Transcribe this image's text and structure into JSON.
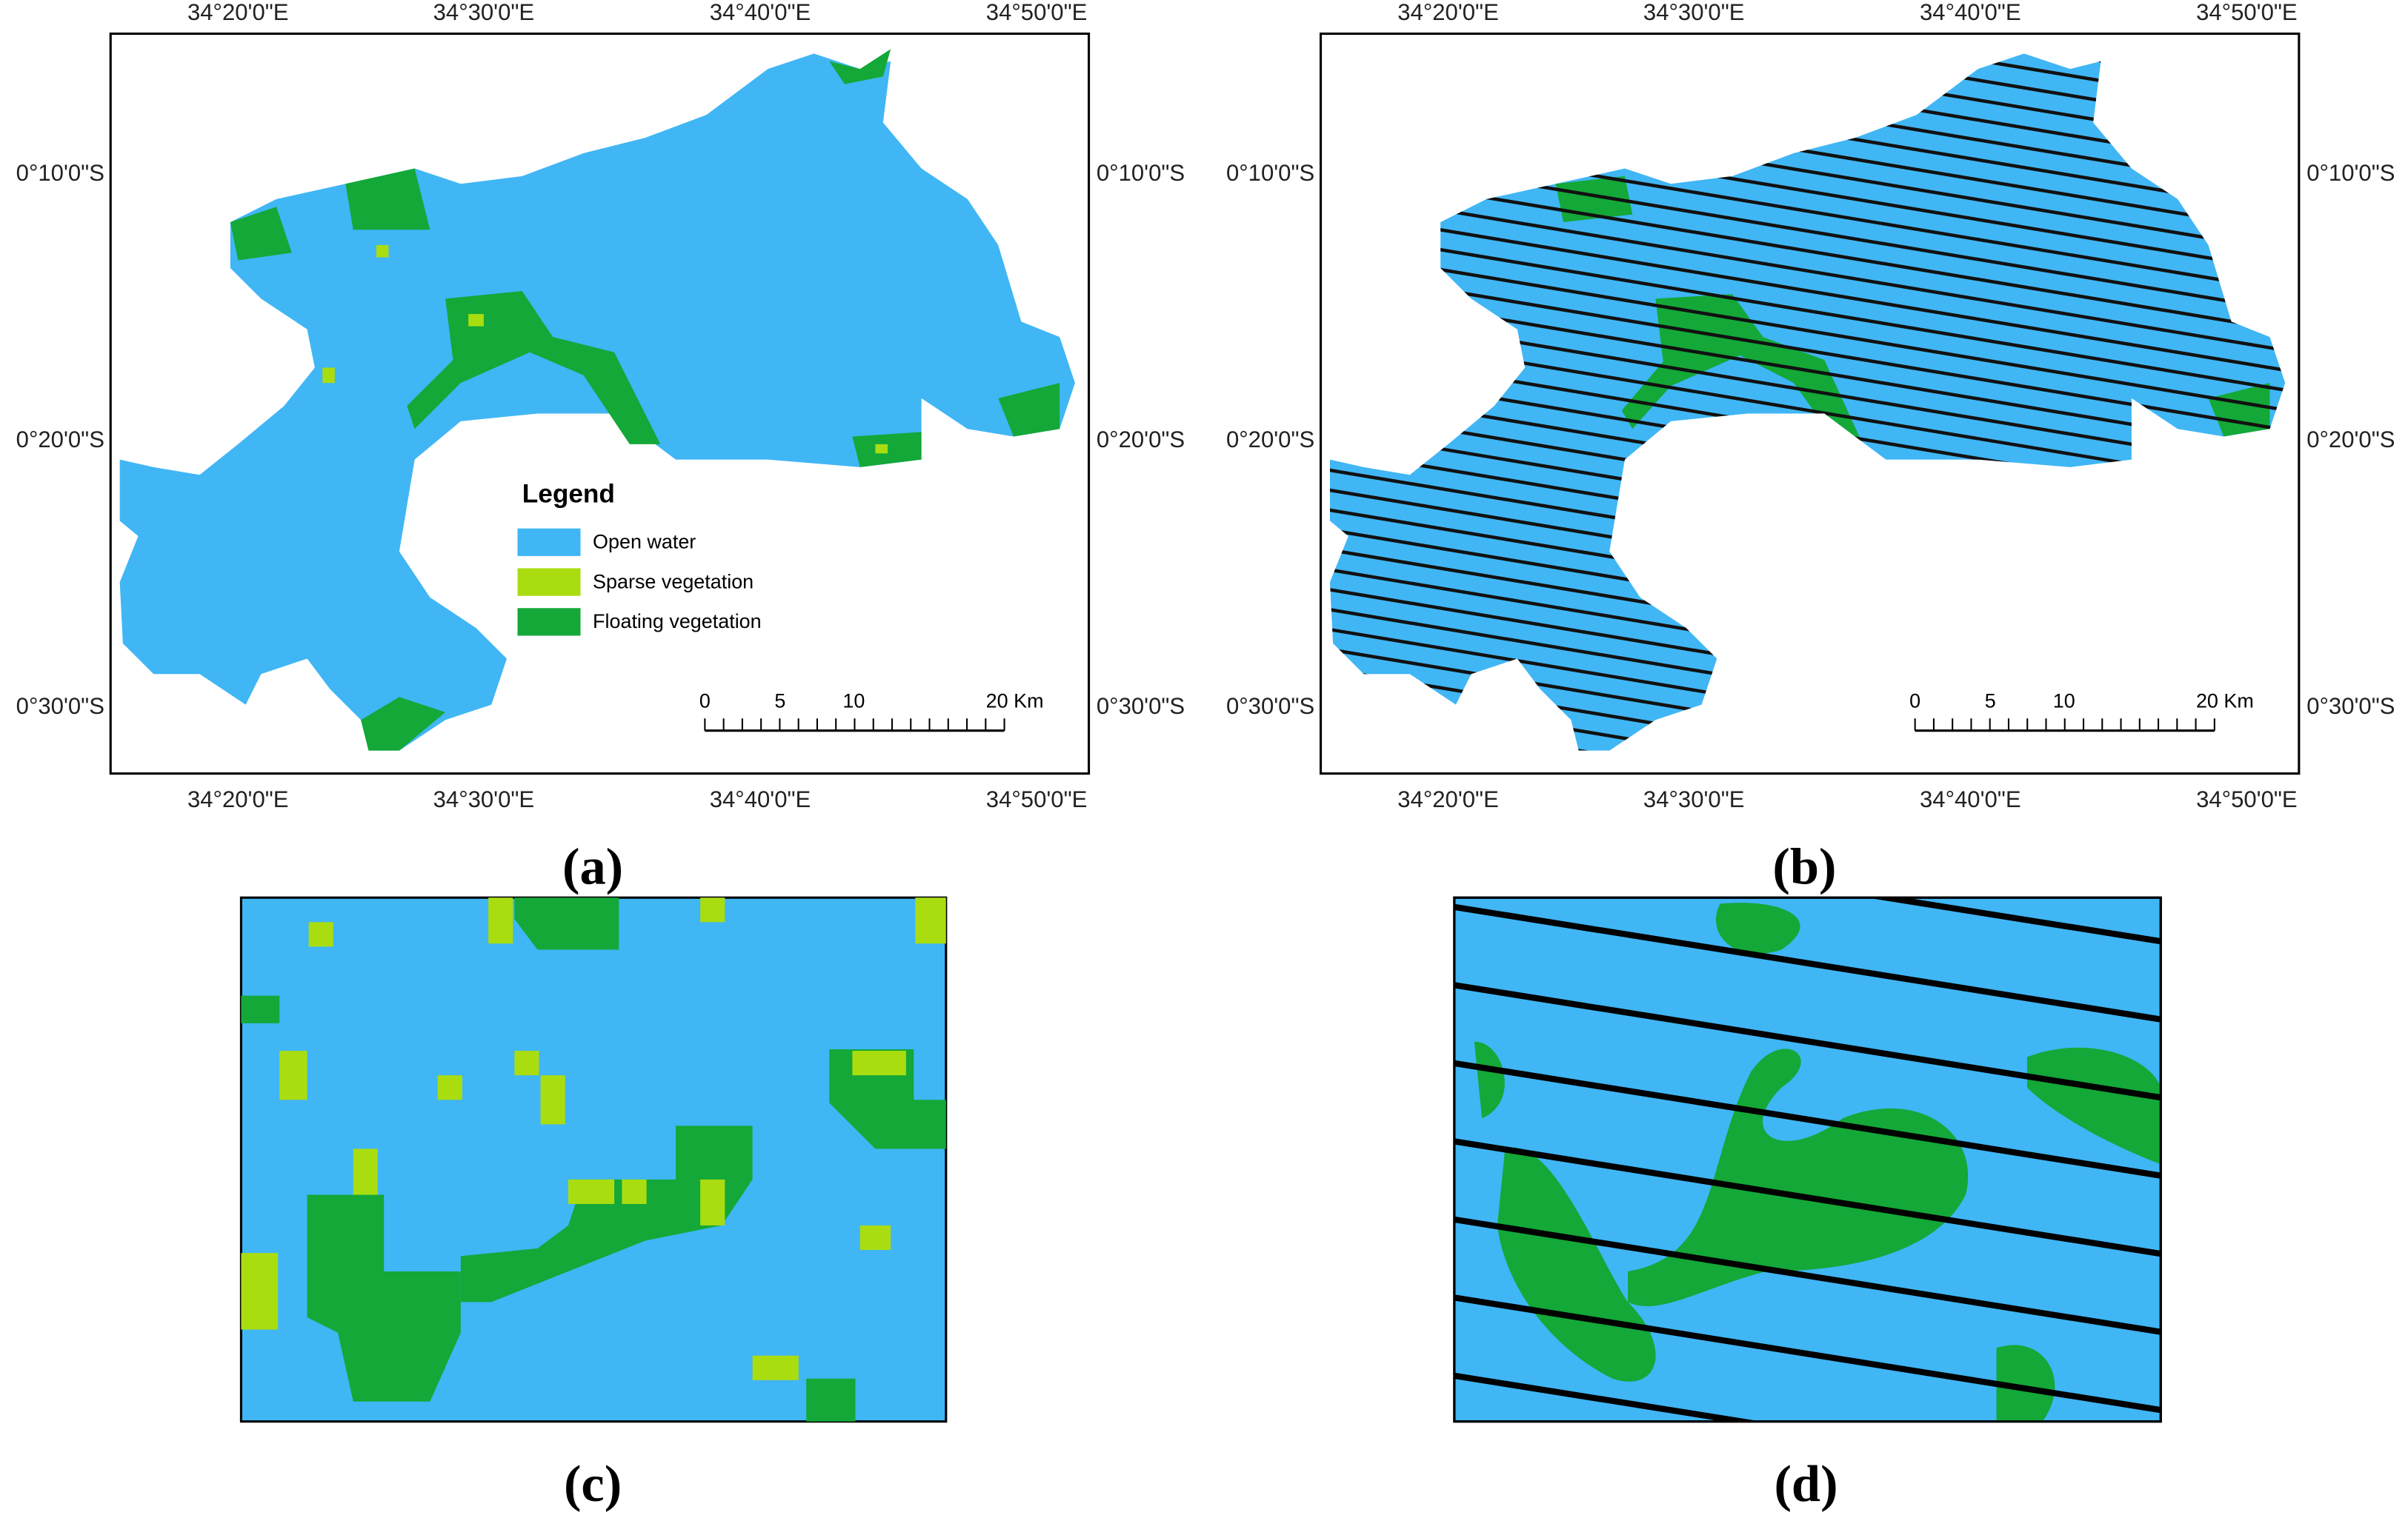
{
  "panels": [
    {
      "caption": "(a)",
      "lon_labels": [
        "34°20'0\"E",
        "34°30'0\"E",
        "34°40'0\"E",
        "34°50'0\"E"
      ],
      "lat_labels": [
        "0°10'0\"S",
        "0°20'0\"S",
        "0°30'0\"S"
      ],
      "scale_labels": [
        "0",
        "5",
        "10",
        "20 Km"
      ]
    },
    {
      "caption": "(b)",
      "lon_labels": [
        "34°20'0\"E",
        "34°30'0\"E",
        "34°40'0\"E",
        "34°50'0\"E"
      ],
      "lat_labels": [
        "0°10'0\"S",
        "0°20'0\"S",
        "0°30'0\"S"
      ],
      "scale_labels": [
        "0",
        "5",
        "10",
        "20 Km"
      ]
    },
    {
      "caption": "(c)"
    },
    {
      "caption": "(d)"
    }
  ],
  "legend": {
    "title": "Legend",
    "items": [
      "Open water",
      "Sparse vegetation",
      "Floating vegetation"
    ]
  }
}
